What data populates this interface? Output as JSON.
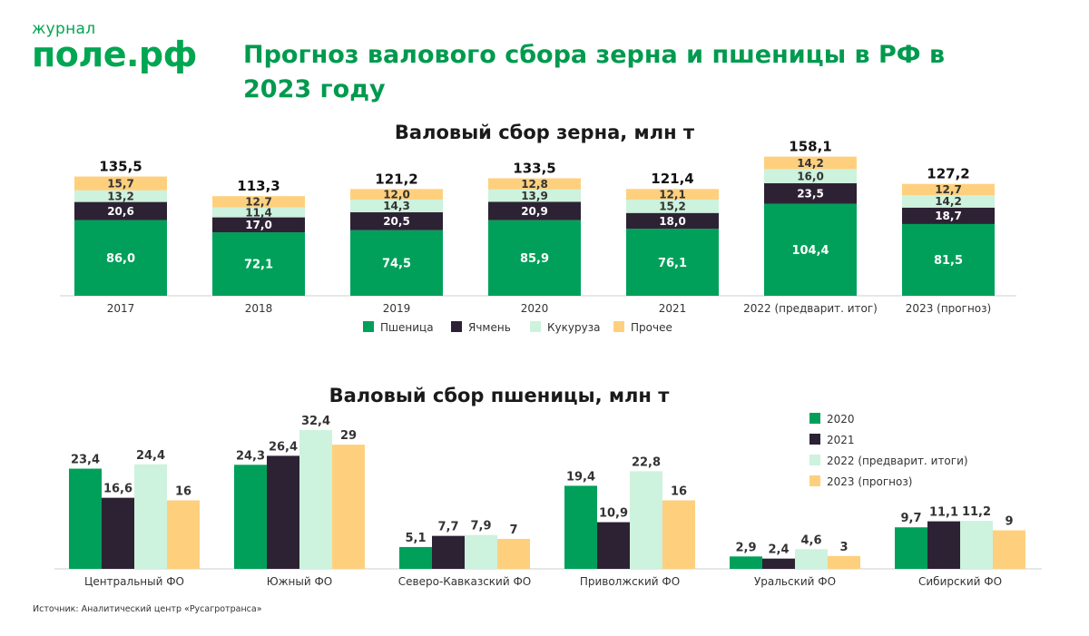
{
  "logo": {
    "small": "журнал",
    "main": "поле.рф"
  },
  "title": "Прогноз валового сбора зерна и пшеницы в РФ в 2023 году",
  "source": "Источник: Аналитический центр «Русагротранса»",
  "colors": {
    "wheat": "#00a05a",
    "barley": "#2d2234",
    "corn": "#cdf2dd",
    "other": "#fed07e",
    "brand": "#00a651"
  },
  "chart_data": [
    {
      "type": "bar",
      "stacked": true,
      "title": "Валовый сбор зерна, млн т",
      "categories": [
        "2017",
        "2018",
        "2019",
        "2020",
        "2021",
        "2022 (предварит. итог)",
        "2023 (прогноз)"
      ],
      "series": [
        {
          "name": "Пшеница",
          "values": [
            86.0,
            72.1,
            74.5,
            85.9,
            76.1,
            104.4,
            81.5
          ],
          "labels": [
            "86,0",
            "72,1",
            "74,5",
            "85,9",
            "76,1",
            "104,4",
            "81,5"
          ]
        },
        {
          "name": "Ячмень",
          "values": [
            20.6,
            17.0,
            20.5,
            20.9,
            18.0,
            23.5,
            18.7
          ],
          "labels": [
            "20,6",
            "17,0",
            "20,5",
            "20,9",
            "18,0",
            "23,5",
            "18,7"
          ]
        },
        {
          "name": "Кукуруза",
          "values": [
            13.2,
            11.4,
            14.3,
            13.9,
            15.2,
            16.0,
            14.2
          ],
          "labels": [
            "13,2",
            "11,4",
            "14,3",
            "13,9",
            "15,2",
            "16,0",
            "14,2"
          ]
        },
        {
          "name": "Прочее",
          "values": [
            15.7,
            12.7,
            12.0,
            12.8,
            12.1,
            14.2,
            12.7
          ],
          "labels": [
            "15,7",
            "12,7",
            "12,0",
            "12,8",
            "12,1",
            "14,2",
            "12,7"
          ]
        }
      ],
      "totals": [
        "135,5",
        "113,3",
        "121,2",
        "133,5",
        "121,4",
        "158,1",
        "127,2"
      ],
      "legend": "bottom"
    },
    {
      "type": "bar",
      "stacked": false,
      "title": "Валовый сбор пшеницы, млн т",
      "categories": [
        "Центральный ФО",
        "Южный ФО",
        "Северо-Кавказский ФО",
        "Приволжский ФО",
        "Уральский ФО",
        "Сибирский ФО"
      ],
      "series": [
        {
          "name": "2020",
          "values": [
            23.4,
            24.3,
            5.1,
            19.4,
            2.9,
            9.7
          ],
          "labels": [
            "23,4",
            "24,3",
            "5,1",
            "19,4",
            "2,9",
            "9,7"
          ]
        },
        {
          "name": "2021",
          "values": [
            16.6,
            26.4,
            7.7,
            10.9,
            2.4,
            11.1
          ],
          "labels": [
            "16,6",
            "26,4",
            "7,7",
            "10,9",
            "2,4",
            "11,1"
          ]
        },
        {
          "name": "2022 (предварит. итоги)",
          "values": [
            24.4,
            32.4,
            7.9,
            22.8,
            4.6,
            11.2
          ],
          "labels": [
            "24,4",
            "32,4",
            "7,9",
            "22,8",
            "4,6",
            "11,2"
          ]
        },
        {
          "name": "2023 (прогноз)",
          "values": [
            16,
            29,
            7,
            16,
            3,
            9
          ],
          "labels": [
            "16",
            "29",
            "7",
            "16",
            "3",
            "9"
          ]
        }
      ],
      "legend": "right"
    }
  ]
}
